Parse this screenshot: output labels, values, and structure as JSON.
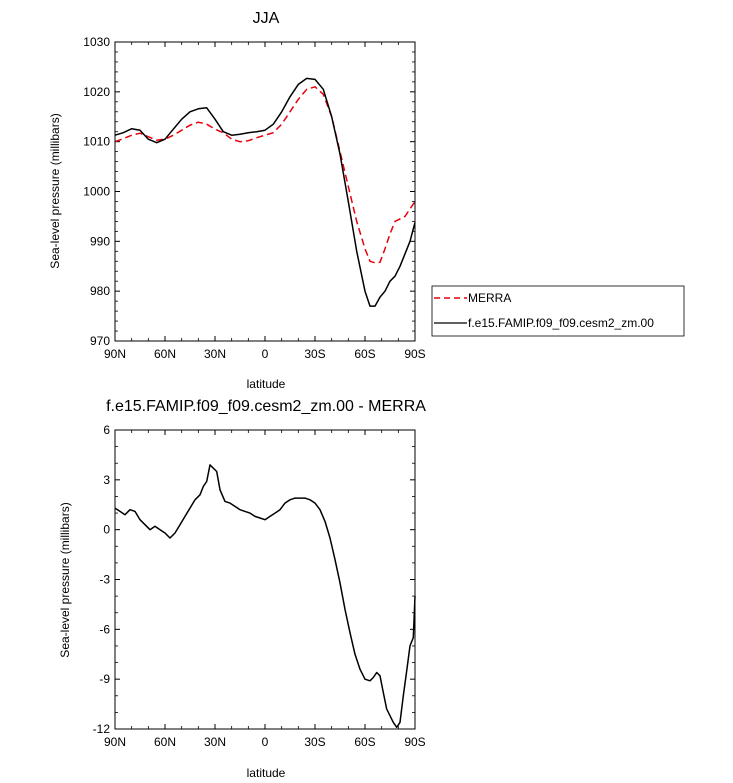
{
  "chart_data": [
    {
      "type": "line",
      "title": "JJA",
      "xlabel": "latitude",
      "ylabel": "Sea-level pressure (millibars)",
      "xlim": [
        90,
        -90
      ],
      "ylim": [
        970,
        1030
      ],
      "xticks": [
        {
          "value": 90,
          "label": "90N"
        },
        {
          "value": 60,
          "label": "60N"
        },
        {
          "value": 30,
          "label": "30N"
        },
        {
          "value": 0,
          "label": "0"
        },
        {
          "value": -30,
          "label": "30S"
        },
        {
          "value": -60,
          "label": "60S"
        },
        {
          "value": -90,
          "label": "90S"
        }
      ],
      "yticks": [
        970,
        980,
        990,
        1000,
        1010,
        1020,
        1030
      ],
      "grid": false,
      "legend": "right",
      "series": [
        {
          "name": "MERRA",
          "color": "#e8000b",
          "dash": "dashed",
          "x": [
            90,
            85,
            80,
            75,
            70,
            65,
            60,
            55,
            50,
            45,
            40,
            35,
            30,
            25,
            20,
            15,
            10,
            5,
            0,
            -5,
            -10,
            -15,
            -20,
            -25,
            -30,
            -35,
            -40,
            -45,
            -50,
            -55,
            -60,
            -63,
            -66,
            -69,
            -72,
            -75,
            -78,
            -81,
            -84,
            -87,
            -90
          ],
          "y": [
            1010.0,
            1010.6,
            1011.3,
            1011.7,
            1011.0,
            1010.3,
            1010.5,
            1011.3,
            1012.3,
            1013.3,
            1013.9,
            1013.5,
            1012.5,
            1011.8,
            1010.5,
            1010.0,
            1010.2,
            1010.8,
            1011.3,
            1011.8,
            1013.5,
            1016.0,
            1018.5,
            1020.5,
            1021.0,
            1019.5,
            1015.0,
            1008.0,
            1001.0,
            994.0,
            988.5,
            986.0,
            985.7,
            985.8,
            988.5,
            991.5,
            994.0,
            994.5,
            995.0,
            996.5,
            998.0
          ]
        },
        {
          "name": "f.e15.FAMIP.f09_f09.cesm2_zm.00",
          "color": "#000000",
          "dash": "solid",
          "x": [
            90,
            85,
            80,
            75,
            70,
            65,
            60,
            55,
            50,
            45,
            40,
            35,
            30,
            25,
            20,
            15,
            10,
            5,
            0,
            -5,
            -10,
            -15,
            -20,
            -25,
            -30,
            -35,
            -40,
            -45,
            -50,
            -55,
            -60,
            -63,
            -66,
            -69,
            -72,
            -75,
            -78,
            -81,
            -84,
            -87,
            -90
          ],
          "y": [
            1011.3,
            1011.8,
            1012.6,
            1012.3,
            1010.5,
            1009.8,
            1010.5,
            1012.5,
            1014.5,
            1016.0,
            1016.6,
            1016.8,
            1014.5,
            1012.0,
            1011.3,
            1011.5,
            1011.8,
            1012.0,
            1012.3,
            1013.5,
            1016.0,
            1019.0,
            1021.5,
            1022.7,
            1022.5,
            1020.5,
            1015.0,
            1007.5,
            998.0,
            988.0,
            980.0,
            977.0,
            977.0,
            978.8,
            980.0,
            982.0,
            983.0,
            985.0,
            987.5,
            990.0,
            993.8
          ]
        }
      ]
    },
    {
      "type": "line",
      "title": "f.e15.FAMIP.f09_f09.cesm2_zm.00 - MERRA",
      "xlabel": "latitude",
      "ylabel": "Sea-level pressure (millibars)",
      "xlim": [
        90,
        -90
      ],
      "ylim": [
        -12,
        6
      ],
      "xticks": [
        {
          "value": 90,
          "label": "90N"
        },
        {
          "value": 60,
          "label": "60N"
        },
        {
          "value": 30,
          "label": "30N"
        },
        {
          "value": 0,
          "label": "0"
        },
        {
          "value": -30,
          "label": "30S"
        },
        {
          "value": -60,
          "label": "60S"
        },
        {
          "value": -90,
          "label": "90S"
        }
      ],
      "yticks": [
        -12,
        -9,
        -6,
        -3,
        0,
        3,
        6
      ],
      "grid": false,
      "series": [
        {
          "color": "#000000",
          "dash": "solid",
          "x": [
            90,
            87,
            84,
            81,
            78,
            75,
            72,
            69,
            66,
            63,
            60,
            57,
            54,
            51,
            48,
            45,
            42,
            39,
            37,
            35,
            33,
            31,
            29,
            27,
            24,
            21,
            18,
            15,
            12,
            9,
            6,
            3,
            0,
            -3,
            -6,
            -9,
            -12,
            -15,
            -18,
            -21,
            -24,
            -27,
            -30,
            -33,
            -36,
            -39,
            -42,
            -45,
            -48,
            -51,
            -54,
            -57,
            -60,
            -63,
            -65,
            -67,
            -69,
            -71,
            -73,
            -75,
            -77,
            -79,
            -81,
            -83,
            -85,
            -87,
            -89,
            -90
          ],
          "y": [
            1.3,
            1.1,
            0.9,
            1.2,
            1.1,
            0.6,
            0.3,
            0.0,
            0.2,
            0.0,
            -0.2,
            -0.5,
            -0.2,
            0.3,
            0.8,
            1.3,
            1.8,
            2.1,
            2.6,
            2.9,
            3.9,
            3.7,
            3.5,
            2.4,
            1.7,
            1.6,
            1.4,
            1.2,
            1.1,
            1.0,
            0.8,
            0.7,
            0.6,
            0.8,
            1.0,
            1.2,
            1.6,
            1.8,
            1.9,
            1.9,
            1.9,
            1.8,
            1.6,
            1.2,
            0.5,
            -0.5,
            -1.8,
            -3.2,
            -4.8,
            -6.2,
            -7.5,
            -8.4,
            -9.0,
            -9.1,
            -8.9,
            -8.6,
            -8.8,
            -9.8,
            -10.8,
            -11.2,
            -11.6,
            -11.9,
            -11.6,
            -10.0,
            -8.5,
            -7.0,
            -6.5,
            -4.0
          ]
        }
      ]
    }
  ]
}
